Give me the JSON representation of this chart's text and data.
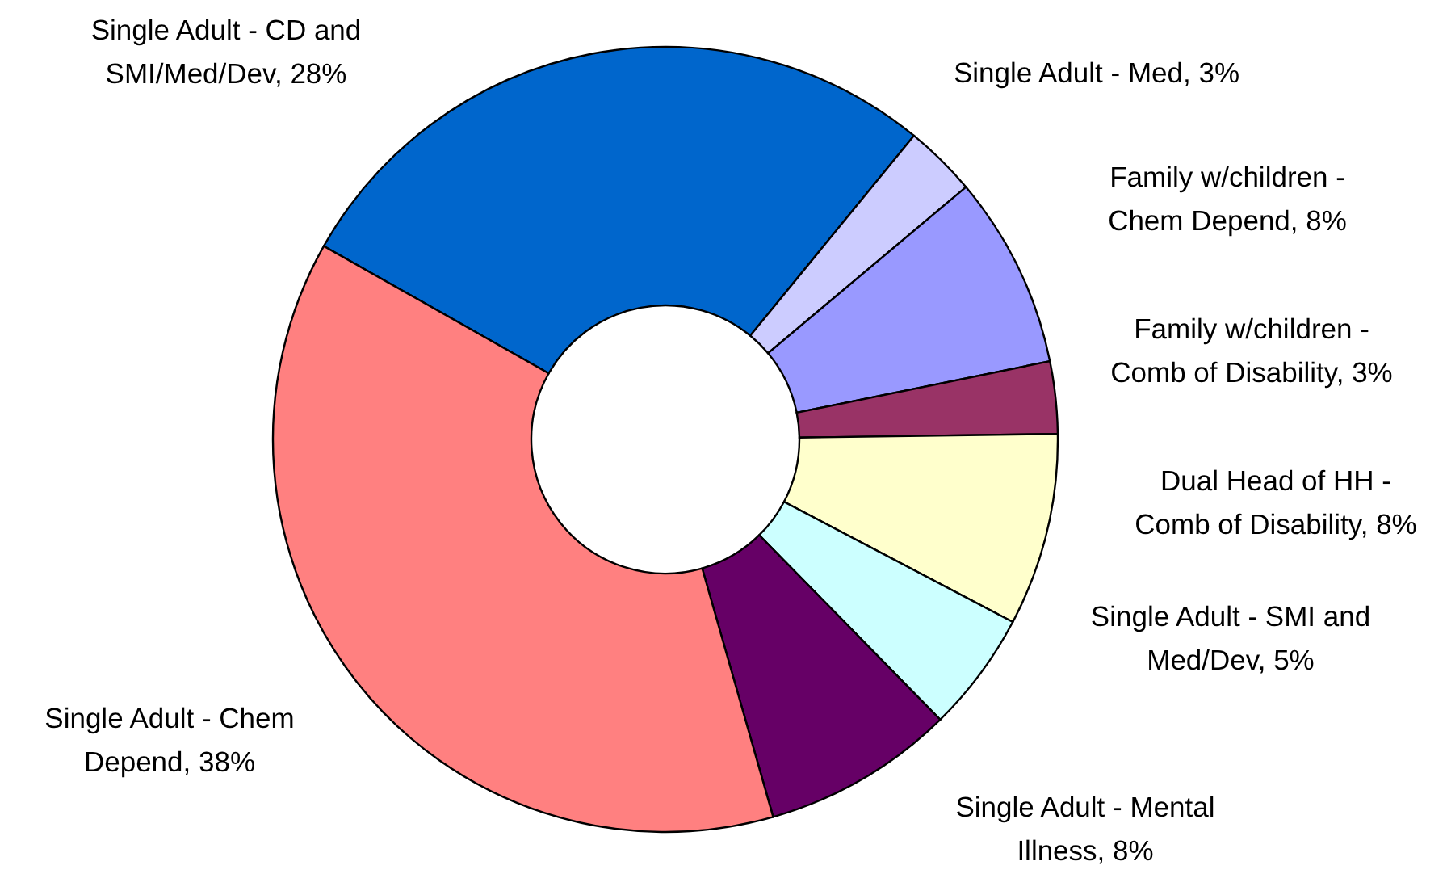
{
  "chart_data": {
    "type": "donut",
    "categories": [
      "Single Adult - CD and SMI/Med/Dev",
      "Single Adult - Med",
      "Family w/children - Chem Depend",
      "Family w/children - Comb of Disability",
      "Dual Head of HH - Comb of Disability",
      "Single Adult - SMI and Med/Dev",
      "Single Adult - Mental Illness",
      "Single Adult - Chem Depend"
    ],
    "values": [
      28,
      3,
      8,
      3,
      8,
      5,
      8,
      38
    ],
    "value_labels": [
      "28%",
      "3%",
      "8%",
      "3%",
      "8%",
      "5%",
      "8%",
      "38%"
    ],
    "colors": [
      "#0066cc",
      "#ccccff",
      "#9999ff",
      "#993366",
      "#ffffcc",
      "#ccffff",
      "#660066",
      "#ff8080"
    ],
    "legend": false
  }
}
